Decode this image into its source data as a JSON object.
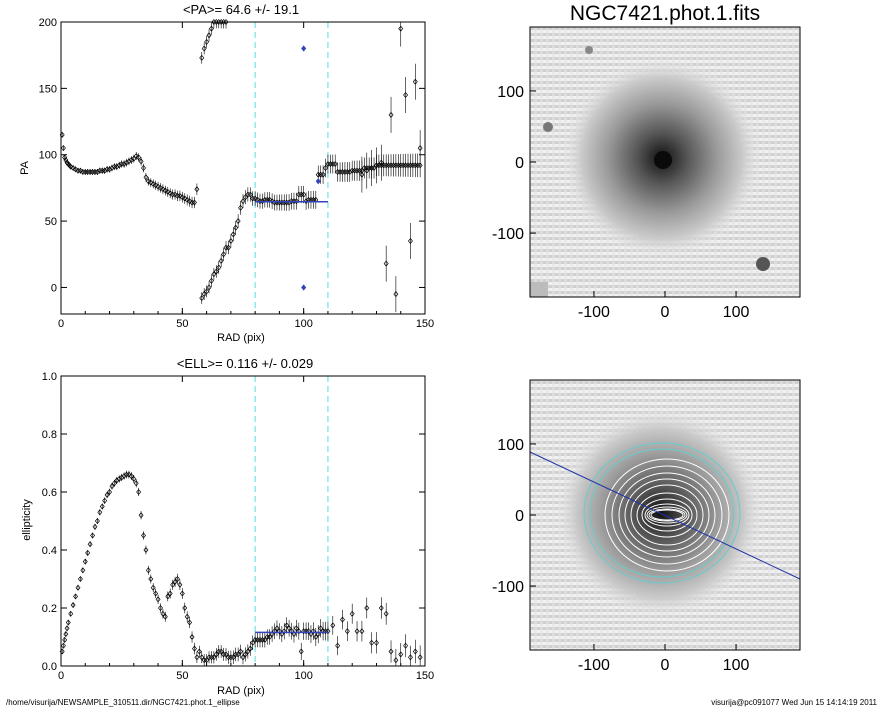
{
  "footer": {
    "path": "/home/visurija/NEWSAMPLE_310511.dir/NGC7421.phot.1_ellipse",
    "user_time": "visurija@pc091077  Wed Jun 15 14:14:19 2011"
  },
  "colors": {
    "fit_line": "#3344bb",
    "range_marker": "#55dddd",
    "points": "#000000",
    "contour": "#ffffff",
    "contour_outer": "#66cccc",
    "pa_line": "#2233aa"
  },
  "chart_data": [
    {
      "type": "scatter",
      "title": "<PA>=  64.6 +/-  19.1",
      "xlabel": "RAD (pix)",
      "ylabel": "PA",
      "xlim": [
        0,
        150
      ],
      "ylim": [
        -20,
        200
      ],
      "xticks": [
        "0",
        "50",
        "100",
        "150"
      ],
      "yticks": [
        "0",
        "50",
        "100",
        "150",
        "200"
      ],
      "fit": {
        "x": [
          80,
          110
        ],
        "y": 64.6
      },
      "range_markers": [
        80,
        110
      ],
      "highlight_points": [
        [
          100,
          0
        ],
        [
          100,
          180
        ],
        [
          106,
          80
        ]
      ],
      "series": [
        {
          "x": [
            0.5,
            1,
            1.5,
            2,
            2.5,
            3,
            3.5,
            4,
            5,
            6,
            7,
            8,
            9,
            10,
            11,
            12,
            13,
            14,
            15,
            16,
            17,
            18,
            19,
            20,
            21,
            22,
            23,
            24,
            25,
            26,
            27,
            28,
            29,
            30,
            31,
            32,
            33,
            34,
            35,
            36,
            37,
            38,
            39,
            40,
            41,
            42,
            43,
            44,
            45,
            46,
            47,
            48,
            49,
            50,
            51,
            52,
            53,
            54,
            55,
            56
          ],
          "y": [
            115,
            105,
            98,
            96,
            94,
            93,
            92,
            91,
            90,
            89,
            88,
            88,
            87,
            87,
            87,
            87,
            87,
            87,
            87,
            88,
            88,
            88,
            89,
            89,
            90,
            91,
            91,
            92,
            93,
            93,
            94,
            95,
            96,
            97,
            99,
            98,
            95,
            90,
            83,
            80,
            79,
            78,
            77,
            76,
            75,
            74,
            73,
            72,
            71,
            70,
            70,
            69,
            69,
            68,
            67,
            66,
            65,
            64,
            64,
            74
          ]
        },
        {
          "x": [
            58,
            59,
            60,
            61,
            62,
            63,
            64,
            65,
            66,
            67,
            68,
            69,
            70,
            71,
            72,
            73,
            74,
            75,
            76,
            77,
            78,
            79,
            80,
            81,
            82,
            83,
            84,
            85,
            86,
            87,
            88,
            89,
            90,
            91,
            92,
            93,
            94,
            95,
            96,
            97,
            98,
            99,
            100,
            101,
            102,
            103,
            104,
            105,
            106,
            107,
            108,
            109,
            110,
            111,
            112,
            113,
            114,
            115,
            116,
            117,
            118,
            119,
            120,
            121,
            122,
            123,
            124,
            125,
            126,
            127,
            128,
            129,
            130,
            131,
            132,
            133,
            134,
            135,
            136,
            137,
            138,
            139,
            140,
            141,
            142,
            143,
            144,
            145,
            146,
            147,
            148
          ],
          "y": [
            -8,
            -5,
            -3,
            0,
            5,
            10,
            12,
            15,
            20,
            25,
            30,
            30,
            35,
            40,
            45,
            50,
            60,
            65,
            68,
            70,
            70,
            67,
            67,
            66,
            65,
            65,
            66,
            66,
            66,
            65,
            64,
            64,
            64,
            64,
            64,
            64,
            64,
            65,
            65,
            65,
            70,
            70,
            70,
            65,
            66,
            66,
            66,
            66,
            85,
            85,
            85,
            90,
            93,
            93,
            93,
            93,
            87,
            87,
            87,
            87,
            87,
            87,
            88,
            88,
            88,
            88,
            88,
            90,
            90,
            90,
            90,
            90,
            92,
            92,
            92,
            92,
            92,
            92,
            92,
            92,
            92,
            92,
            92,
            92,
            92,
            92,
            92,
            92,
            92,
            92,
            92
          ]
        },
        {
          "x": [
            58,
            59,
            60,
            61,
            62,
            63,
            64,
            65,
            66,
            67,
            68
          ],
          "y": [
            173,
            180,
            185,
            190,
            195,
            200,
            200,
            200,
            200,
            200,
            200
          ]
        },
        {
          "x": [
            124,
            126,
            128,
            130,
            132,
            134,
            136,
            138,
            140,
            142,
            144,
            146,
            148
          ],
          "y": [
            85,
            88,
            90,
            92,
            94,
            18,
            130,
            -5,
            195,
            145,
            35,
            155,
            105
          ]
        }
      ]
    },
    {
      "type": "scatter",
      "title": "<ELL>= 0.116 +/-  0.029",
      "xlabel": "RAD (pix)",
      "ylabel": "ellipticity",
      "xlim": [
        0,
        150
      ],
      "ylim": [
        0,
        1
      ],
      "xticks": [
        "0",
        "50",
        "100",
        "150"
      ],
      "yticks": [
        "0.0",
        "0.2",
        "0.4",
        "0.6",
        "0.8",
        "1.0"
      ],
      "fit": {
        "x": [
          80,
          110
        ],
        "y": 0.116
      },
      "range_markers": [
        80,
        110
      ],
      "series": [
        {
          "x": [
            0.5,
            1,
            1.5,
            2,
            2.5,
            3,
            4,
            5,
            6,
            7,
            8,
            9,
            10,
            11,
            12,
            13,
            14,
            15,
            16,
            17,
            18,
            19,
            20,
            21,
            22,
            23,
            24,
            25,
            26,
            27,
            28,
            29,
            30,
            31,
            32,
            33,
            34,
            35,
            36,
            37,
            38,
            39,
            40,
            41,
            42,
            43,
            44,
            45,
            46,
            47,
            48,
            49,
            50,
            51,
            52,
            53,
            54,
            55,
            56
          ],
          "y": [
            0.05,
            0.07,
            0.09,
            0.11,
            0.13,
            0.15,
            0.18,
            0.21,
            0.24,
            0.27,
            0.3,
            0.33,
            0.36,
            0.39,
            0.42,
            0.45,
            0.48,
            0.5,
            0.53,
            0.55,
            0.57,
            0.59,
            0.6,
            0.62,
            0.63,
            0.64,
            0.645,
            0.65,
            0.655,
            0.66,
            0.66,
            0.655,
            0.645,
            0.63,
            0.6,
            0.52,
            0.45,
            0.4,
            0.33,
            0.3,
            0.27,
            0.25,
            0.23,
            0.2,
            0.18,
            0.17,
            0.24,
            0.25,
            0.28,
            0.29,
            0.3,
            0.28,
            0.25,
            0.2,
            0.17,
            0.15,
            0.1,
            0.06,
            0.03
          ]
        },
        {
          "x": [
            57,
            58,
            59,
            60,
            61,
            62,
            63,
            64,
            65,
            66,
            67,
            68,
            69,
            70,
            71,
            72,
            73,
            74,
            75,
            76,
            77,
            78,
            79,
            80,
            81,
            82,
            83,
            84,
            85,
            86,
            87,
            88,
            89,
            90,
            91,
            92,
            93,
            94,
            95,
            96,
            97,
            98,
            99,
            100,
            101,
            102,
            103,
            104,
            105,
            106,
            107,
            108,
            109,
            110,
            112,
            114,
            116,
            118,
            120,
            122,
            124,
            126,
            128,
            130,
            132,
            134,
            136,
            138,
            140,
            142,
            144,
            146,
            148
          ],
          "y": [
            0.05,
            0.03,
            0.02,
            0.02,
            0.03,
            0.03,
            0.03,
            0.04,
            0.05,
            0.05,
            0.04,
            0.04,
            0.03,
            0.03,
            0.03,
            0.04,
            0.04,
            0.05,
            0.03,
            0.04,
            0.05,
            0.06,
            0.08,
            0.09,
            0.09,
            0.09,
            0.09,
            0.09,
            0.1,
            0.1,
            0.11,
            0.12,
            0.13,
            0.12,
            0.11,
            0.12,
            0.14,
            0.13,
            0.12,
            0.11,
            0.13,
            0.12,
            0.05,
            0.12,
            0.12,
            0.12,
            0.11,
            0.12,
            0.1,
            0.11,
            0.13,
            0.12,
            0.12,
            0.12,
            0.14,
            0.07,
            0.16,
            0.12,
            0.18,
            0.12,
            0.12,
            0.2,
            0.08,
            0.08,
            0.2,
            0.18,
            0.05,
            0.02,
            0.04,
            0.07,
            0.03,
            0.05,
            0.03
          ]
        }
      ]
    },
    {
      "type": "heatmap",
      "title": "NGC7421.phot.1.fits",
      "xlim": [
        -190,
        190
      ],
      "ylim": [
        -190,
        190
      ],
      "xticks": [
        "-100",
        "0",
        "100"
      ],
      "yticks": [
        "100",
        "0",
        "-100"
      ]
    },
    {
      "type": "heatmap",
      "title": "",
      "xlim": [
        -190,
        190
      ],
      "ylim": [
        -190,
        190
      ],
      "xticks": [
        "-100",
        "0",
        "100"
      ],
      "yticks": [
        "100",
        "0",
        "-100"
      ]
    }
  ]
}
